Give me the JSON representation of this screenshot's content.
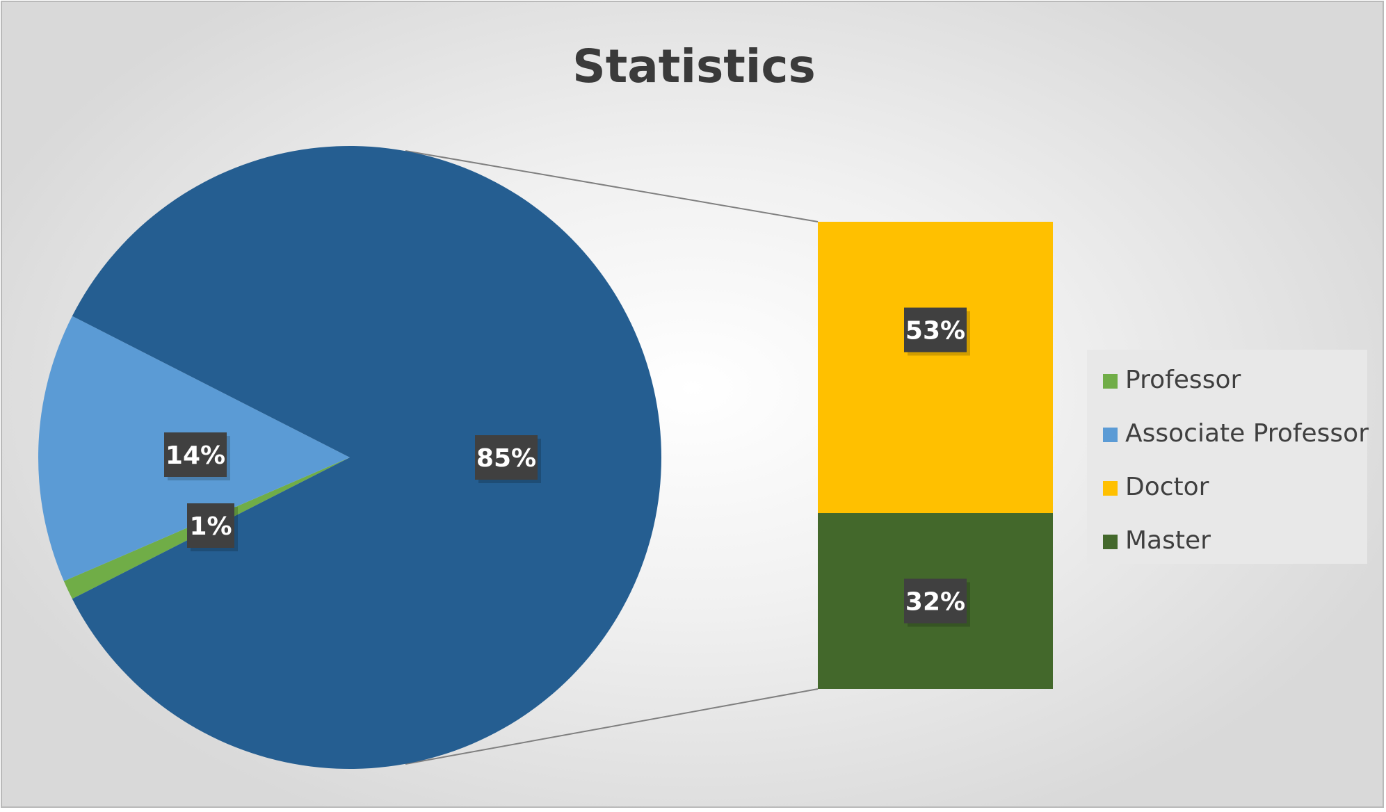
{
  "chart_data": {
    "type": "pie",
    "subtype": "bar-of-pie",
    "title": "Statistics",
    "pie": {
      "slices": [
        {
          "label": "Professor",
          "value": 1,
          "display": "1%",
          "color": "#70ad47"
        },
        {
          "label": "Associate Professor",
          "value": 14,
          "display": "14%",
          "color": "#5b9bd5"
        },
        {
          "label": "",
          "value": 85,
          "display": "85%",
          "color": "#255e91",
          "expanded_in_bar": true
        }
      ]
    },
    "bar": {
      "segments": [
        {
          "label": "Doctor",
          "value": 53,
          "display": "53%",
          "color": "#ffc000"
        },
        {
          "label": "Master",
          "value": 32,
          "display": "32%",
          "color": "#43682b"
        }
      ]
    },
    "legend": {
      "position": "right",
      "items": [
        {
          "label": "Professor",
          "color": "#70ad47"
        },
        {
          "label": "Associate Professor",
          "color": "#5b9bd5"
        },
        {
          "label": "Doctor",
          "color": "#ffc000"
        },
        {
          "label": "Master",
          "color": "#43682b"
        }
      ]
    },
    "connector_color": "#7f7f7f",
    "legend_background": "#e8e8e8",
    "label_box_color": "#404040"
  }
}
